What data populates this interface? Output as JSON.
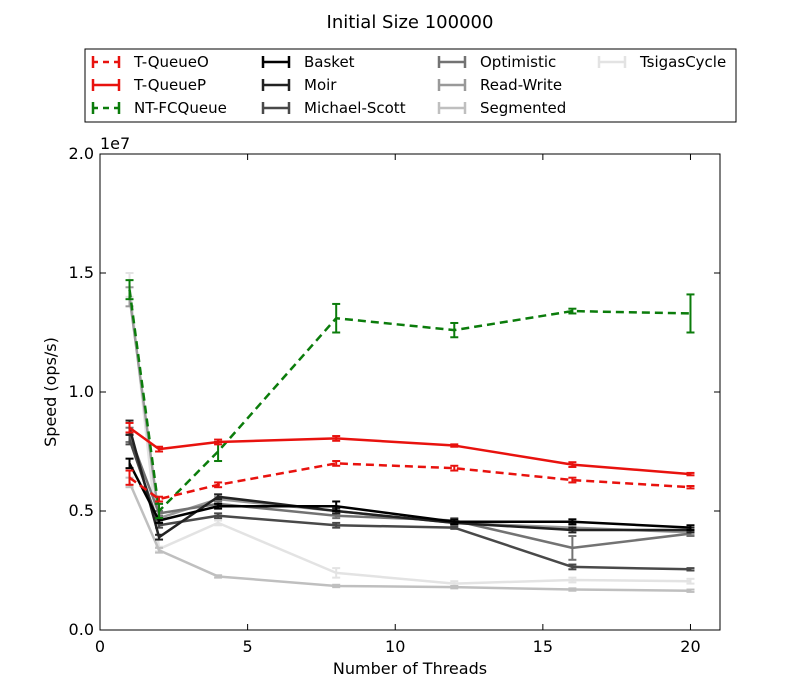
{
  "chart_data": {
    "type": "line",
    "title": "Initial Size 100000",
    "xlabel": "Number of Threads",
    "ylabel": "Speed (ops/s)",
    "y_scale_label": "1e7",
    "xlim": [
      0,
      21
    ],
    "ylim": [
      0,
      2.0
    ],
    "y_multiplier": 10000000,
    "xticks": [
      0,
      5,
      10,
      15,
      20
    ],
    "yticks": [
      0.0,
      0.5,
      1.0,
      1.5,
      2.0
    ],
    "xtick_labels": [
      "0",
      "5",
      "10",
      "15",
      "20"
    ],
    "ytick_labels": [
      "0.0",
      "0.5",
      "1.0",
      "1.5",
      "2.0"
    ],
    "grid": false,
    "legend_position": "top",
    "x": [
      1,
      2,
      4,
      8,
      12,
      16,
      20
    ],
    "series": [
      {
        "name": "T-QueueO",
        "color": "#e8120e",
        "dash": true,
        "values": [
          0.64,
          0.55,
          0.61,
          0.7,
          0.68,
          0.63,
          0.6
        ],
        "errors": [
          0.03,
          0.01,
          0.01,
          0.01,
          0.01,
          0.01,
          0.005
        ]
      },
      {
        "name": "T-QueueP",
        "color": "#e8120e",
        "dash": false,
        "values": [
          0.85,
          0.76,
          0.79,
          0.805,
          0.775,
          0.695,
          0.655
        ],
        "errors": [
          0.02,
          0.01,
          0.01,
          0.01,
          0.005,
          0.01,
          0.005
        ]
      },
      {
        "name": "NT-FCQueue",
        "color": "#0b7c0b",
        "dash": true,
        "values": [
          1.43,
          0.5,
          0.75,
          1.31,
          1.26,
          1.34,
          1.33
        ],
        "errors": [
          0.04,
          0.03,
          0.04,
          0.06,
          0.03,
          0.01,
          0.08
        ]
      },
      {
        "name": "Basket",
        "color": "#000000",
        "dash": false,
        "values": [
          0.7,
          0.46,
          0.52,
          0.52,
          0.455,
          0.455,
          0.43
        ],
        "errors": [
          0.02,
          0.01,
          0.01,
          0.02,
          0.01,
          0.01,
          0.01
        ]
      },
      {
        "name": "Moir",
        "color": "#222222",
        "dash": false,
        "values": [
          0.85,
          0.39,
          0.56,
          0.5,
          0.45,
          0.42,
          0.42
        ],
        "errors": [
          0.03,
          0.01,
          0.01,
          0.01,
          0.005,
          0.01,
          0.01
        ]
      },
      {
        "name": "Michael-Scott",
        "color": "#494949",
        "dash": false,
        "values": [
          0.8,
          0.44,
          0.48,
          0.44,
          0.43,
          0.265,
          0.255
        ],
        "errors": [
          0.02,
          0.01,
          0.01,
          0.01,
          0.005,
          0.01,
          0.005
        ]
      },
      {
        "name": "Optimistic",
        "color": "#737373",
        "dash": false,
        "values": [
          0.82,
          0.49,
          0.53,
          0.48,
          0.46,
          0.345,
          0.405
        ],
        "errors": [
          0.03,
          0.01,
          0.01,
          0.01,
          0.01,
          0.05,
          0.01
        ]
      },
      {
        "name": "Read-Write",
        "color": "#999999",
        "dash": false,
        "values": [
          1.4,
          0.47,
          0.55,
          0.5,
          0.45,
          0.43,
          0.41
        ],
        "errors": [
          0.04,
          0.01,
          0.01,
          0.01,
          0.01,
          0.01,
          0.01
        ]
      },
      {
        "name": "Segmented",
        "color": "#bfbfbf",
        "dash": false,
        "values": [
          0.62,
          0.335,
          0.225,
          0.185,
          0.18,
          0.17,
          0.165
        ],
        "errors": [
          0.02,
          0.01,
          0.005,
          0.005,
          0.005,
          0.005,
          0.005
        ]
      },
      {
        "name": "TsigasCycle",
        "color": "#e3e3e3",
        "dash": false,
        "values": [
          1.45,
          0.34,
          0.45,
          0.24,
          0.195,
          0.21,
          0.205
        ],
        "errors": [
          0.05,
          0.01,
          0.01,
          0.02,
          0.01,
          0.01,
          0.01
        ]
      }
    ]
  }
}
